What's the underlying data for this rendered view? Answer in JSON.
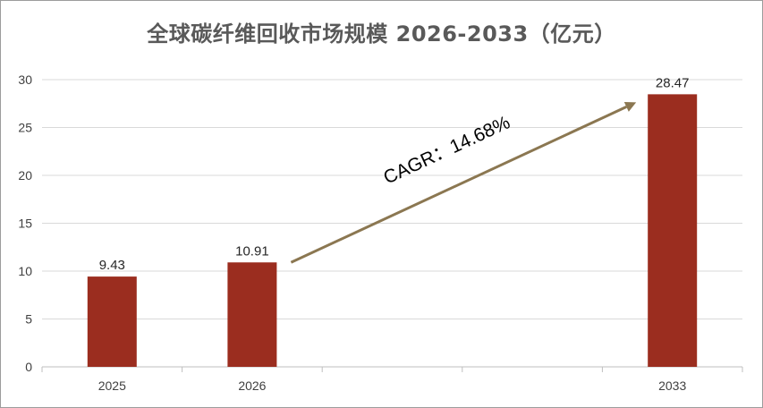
{
  "chart_data": {
    "type": "bar",
    "title": "全球碳纤维回收市场规模 2026-2033（亿元）",
    "categories": [
      "2025",
      "2026",
      "",
      "",
      "2033"
    ],
    "values": [
      9.43,
      10.91,
      null,
      null,
      28.47
    ],
    "data_labels": [
      "9.43",
      "10.91",
      "",
      "",
      "28.47"
    ],
    "ylim": [
      0,
      30
    ],
    "yticks": [
      0,
      5,
      10,
      15,
      20,
      25,
      30
    ],
    "grid": true,
    "legend": "none",
    "annotation": {
      "text": "CAGR：14.68%",
      "from_category": "2026",
      "to_category": "2033"
    },
    "colors": {
      "bar": "#9b2d1f",
      "arrow": "#8b7751",
      "grid": "#d9d9d9",
      "axis": "#bfbfbf"
    }
  }
}
